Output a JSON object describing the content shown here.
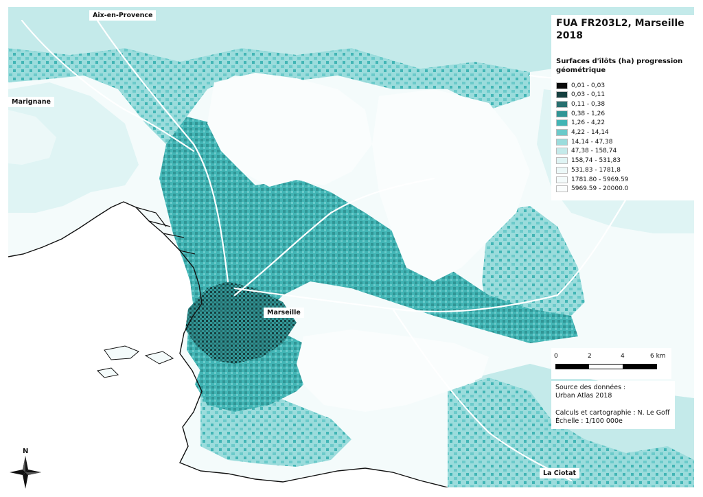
{
  "map": {
    "title": "FUA FR203L2, Marseille 2018",
    "colors": {
      "sea": "#ffffff",
      "land_base": "#f4fbfb",
      "coast": "#111111"
    }
  },
  "places": {
    "aix": "Aix-en-Provence",
    "marignane": "Marignane",
    "marseille": "Marseille",
    "la_ciotat": "La Ciotat"
  },
  "legend": {
    "heading": "Surfaces d'îlôts (ha) progression géométrique",
    "classes": [
      {
        "label": "0,01 - 0,03",
        "color": "#0a0a0a"
      },
      {
        "label": "0,03 - 0,11",
        "color": "#153f3f"
      },
      {
        "label": "0,11 - 0,38",
        "color": "#276f6f"
      },
      {
        "label": "0,38 - 1,26",
        "color": "#319595"
      },
      {
        "label": "1,26 - 4,22",
        "color": "#42b5b5"
      },
      {
        "label": "4,22 - 14,14",
        "color": "#6bcaca"
      },
      {
        "label": "14,14 - 47,38",
        "color": "#9bdcdc"
      },
      {
        "label": "47,38 - 158,74",
        "color": "#c4eaea"
      },
      {
        "label": "158,74 - 531,83",
        "color": "#dff4f4"
      },
      {
        "label": "531,83 - 1781,8",
        "color": "#ecf8f8"
      },
      {
        "label": "1781.80 - 5969.59",
        "color": "#f4fbfb"
      },
      {
        "label": "5969.59 - 20000.0",
        "color": "#fafdfd"
      }
    ]
  },
  "scale": {
    "ticks": [
      "0",
      "2",
      "4",
      "6 km"
    ]
  },
  "credits": {
    "source_label": "Source des données :",
    "source_value": "Urban Atlas 2018",
    "author": "Calculs et cartographie : N. Le Goff",
    "scale_text": "Échelle : 1/100 000e"
  },
  "north": {
    "label": "N"
  }
}
